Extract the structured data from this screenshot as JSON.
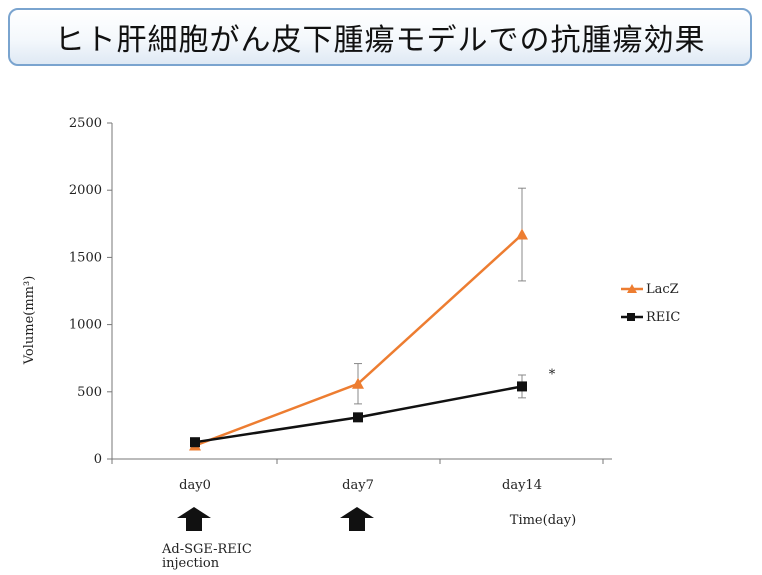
{
  "title": "ヒト肝細胞がん皮下腫瘍モデルでの抗腫瘍効果",
  "chart_data": {
    "type": "line",
    "title": "ヒト肝細胞がん皮下腫瘍モデルでの抗腫瘍効果",
    "xlabel": "Time(day)",
    "ylabel": "Volume(mm³)",
    "categories": [
      "day0",
      "day7",
      "day14"
    ],
    "ylim": [
      0,
      2500
    ],
    "yticks": [
      0,
      500,
      1000,
      1500,
      2000,
      2500
    ],
    "grid": false,
    "legend": "right",
    "series": [
      {
        "name": "LacZ",
        "values": [
          100,
          560,
          1670
        ],
        "errors": [
          0,
          150,
          345
        ],
        "color": "#ed7d31",
        "marker": "triangle"
      },
      {
        "name": "REIC",
        "values": [
          125,
          310,
          540
        ],
        "errors": [
          0,
          0,
          85
        ],
        "color": "#111111",
        "marker": "square"
      }
    ],
    "annotations": [
      {
        "text": "*",
        "category": "day14",
        "value": 600
      }
    ],
    "injection_days": [
      "day0",
      "day7"
    ],
    "injection_label_line1": "Ad-SGE-REIC",
    "injection_label_line2": "injection"
  }
}
